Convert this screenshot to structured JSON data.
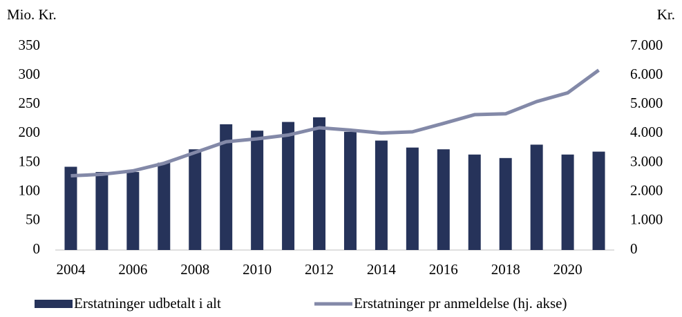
{
  "chart_data": {
    "type": "bar-line",
    "y_label": "Mio. Kr.",
    "y2_label": "Kr.",
    "categories": [
      "2004",
      null,
      "2006",
      null,
      "2008",
      null,
      "2010",
      null,
      "2012",
      null,
      "2014",
      null,
      "2016",
      null,
      "2018",
      null,
      "2020",
      null
    ],
    "series": [
      {
        "name": "Erstatninger udbetalt i alt",
        "type": "bar",
        "color": "#26335a",
        "values": [
          143,
          134,
          134,
          150,
          173,
          216,
          205,
          220,
          228,
          203,
          188,
          176,
          173,
          164,
          158,
          181,
          164,
          169
        ]
      },
      {
        "name": "Erstatninger pr anmeldelse (hj. akse)",
        "type": "line",
        "axis": "y2",
        "color": "#8389a8",
        "values": [
          2550,
          2600,
          2720,
          2980,
          3350,
          3720,
          3820,
          3950,
          4200,
          4120,
          4020,
          4060,
          4350,
          4650,
          4680,
          5100,
          5400,
          6180
        ]
      }
    ],
    "ylim": [
      0,
      350
    ],
    "yticks": [
      0,
      50,
      100,
      150,
      200,
      250,
      300,
      350
    ],
    "y2lim": [
      0,
      7000
    ],
    "y2ticks": [
      0,
      {
        "value": 1000,
        "label": "1.000"
      },
      {
        "value": 2000,
        "label": "2.000"
      },
      {
        "value": 3000,
        "label": "3.000"
      },
      {
        "value": 4000,
        "label": "4.000"
      },
      {
        "value": 5000,
        "label": "5.000"
      },
      {
        "value": 6000,
        "label": "6.000"
      },
      {
        "value": 7000,
        "label": "7.000"
      }
    ],
    "grid": false
  }
}
